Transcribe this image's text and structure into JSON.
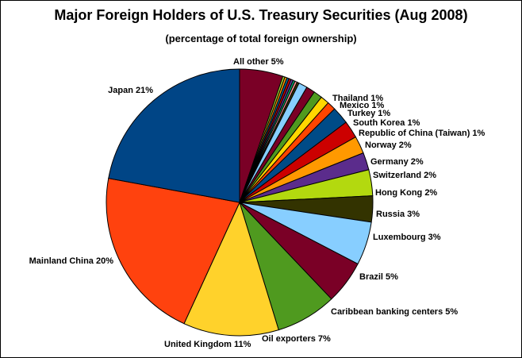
{
  "chart_data": {
    "type": "pie",
    "title": "Major Foreign Holders of U.S. Treasury Securities (Aug 2008)",
    "subtitle": "(percentage of total foreign ownership)",
    "slices": [
      {
        "label": "All other",
        "value": 5,
        "display": "5%",
        "color": "#7a0026"
      },
      {
        "label": "",
        "value": 0.25,
        "display": "",
        "color": "#9acd32"
      },
      {
        "label": "",
        "value": 0.25,
        "display": "",
        "color": "#ff9900"
      },
      {
        "label": "",
        "value": 0.25,
        "display": "",
        "color": "#006699"
      },
      {
        "label": "",
        "value": 0.25,
        "display": "",
        "color": "#cc0000"
      },
      {
        "label": "",
        "value": 0.25,
        "display": "",
        "color": "#663399"
      },
      {
        "label": "",
        "value": 0.25,
        "display": "",
        "color": "#009966"
      },
      {
        "label": "",
        "value": 0.25,
        "display": "",
        "color": "#ff9999"
      },
      {
        "label": "",
        "value": 0.25,
        "display": "",
        "color": "#333300"
      },
      {
        "label": "Thailand",
        "value": 1,
        "display": "1%",
        "color": "#87ceff"
      },
      {
        "label": "Mexico",
        "value": 1,
        "display": "1%",
        "color": "#7a0026"
      },
      {
        "label": "Turkey",
        "value": 1,
        "display": "1%",
        "color": "#4f9a1f"
      },
      {
        "label": "South Korea",
        "value": 1,
        "display": "1%",
        "color": "#ffd700"
      },
      {
        "label": "Republic of China (Taiwan)",
        "value": 1,
        "display": "1%",
        "color": "#ff4500"
      },
      {
        "label": "Norway",
        "value": 2,
        "display": "2%",
        "color": "#004b87"
      },
      {
        "label": "Germany",
        "value": 2,
        "display": "2%",
        "color": "#cc0000"
      },
      {
        "label": "Switzerland",
        "value": 2,
        "display": "2%",
        "color": "#ff9900"
      },
      {
        "label": "Hong Kong",
        "value": 2,
        "display": "2%",
        "color": "#5b2c8c"
      },
      {
        "label": "Russia",
        "value": 3,
        "display": "3%",
        "color": "#b3d90f"
      },
      {
        "label": "Luxembourg",
        "value": 3,
        "display": "3%",
        "color": "#333300"
      },
      {
        "label": "Brazil",
        "value": 5,
        "display": "5%",
        "color": "#87ceff"
      },
      {
        "label": "Caribbean banking centers",
        "value": 5,
        "display": "5%",
        "color": "#7a0026"
      },
      {
        "label": "Oil exporters",
        "value": 7,
        "display": "7%",
        "color": "#4f9a1f"
      },
      {
        "label": "United Kingdom",
        "value": 11,
        "display": "11%",
        "color": "#ffd22b"
      },
      {
        "label": "Mainland China",
        "value": 20,
        "display": "20%",
        "color": "#ff420e"
      },
      {
        "label": "Japan",
        "value": 21,
        "display": "21%",
        "color": "#004586"
      }
    ]
  }
}
